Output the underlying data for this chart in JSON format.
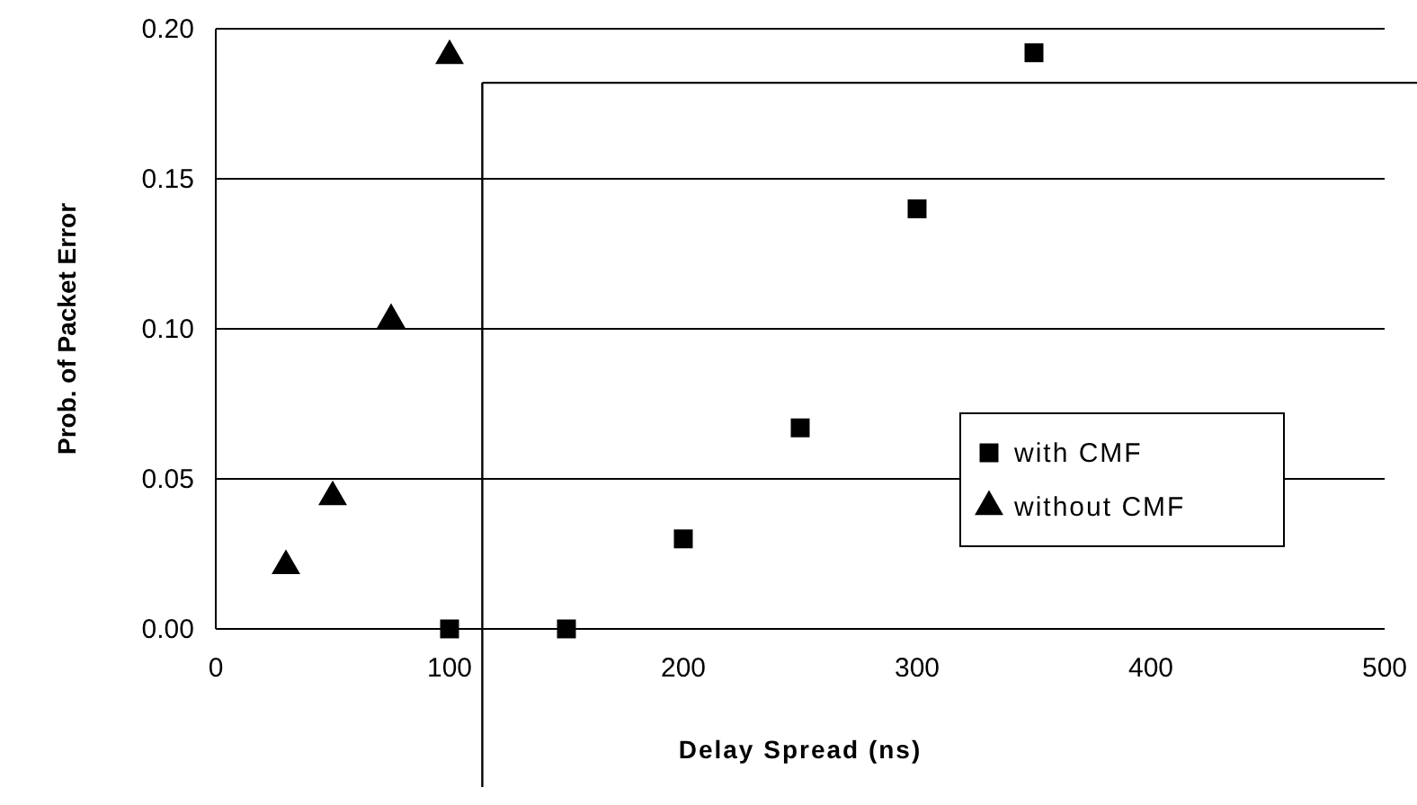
{
  "chart_data": {
    "type": "scatter",
    "xlabel": "Delay Spread (ns)",
    "ylabel": "Prob. of Packet Error",
    "xlim": [
      0,
      500
    ],
    "xticks": [
      0,
      100,
      200,
      300,
      400,
      500
    ],
    "ylim": [
      0,
      0.2
    ],
    "yticks": [
      {
        "value": 0,
        "label": "0.00"
      },
      {
        "value": 0.05,
        "label": "0.05"
      },
      {
        "value": 0.1,
        "label": "0.10"
      },
      {
        "value": 0.15,
        "label": "0.15"
      },
      {
        "value": 0.2,
        "label": "0.20"
      }
    ],
    "grid": "y",
    "legend": "bottom right",
    "ref_lines": [
      {
        "axis": "x",
        "value": 114
      },
      {
        "axis": "y",
        "value": 0.182
      }
    ],
    "series": [
      {
        "name": "with CMF",
        "color": "#000000",
        "marker": "square",
        "x": [
          100,
          150,
          200,
          250,
          300,
          350
        ],
        "values": [
          0,
          0,
          0.03,
          0.067,
          0.14,
          0.192
        ]
      },
      {
        "name": "without CMF",
        "color": "#000000",
        "marker": "triangle",
        "x": [
          30,
          50,
          75,
          100
        ],
        "values": [
          0.021,
          0.044,
          0.103,
          0.191
        ]
      }
    ]
  }
}
